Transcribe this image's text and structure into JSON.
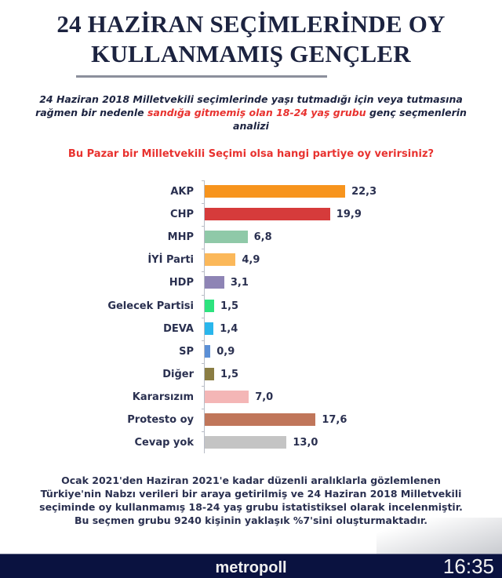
{
  "header": {
    "title_line1": "24 HAZİRAN SEÇİMLERİNDE OY",
    "title_line2": "KULLANMAMIŞ GENÇLER"
  },
  "subtitle": {
    "part1": "24 Haziran 2018 Milletvekili seçimlerinde yaşı tutmadığı için veya tutmasına rağmen bir nedenle ",
    "part_red": "sandığa gitmemiş olan 18-24 yaş grubu",
    "part2": " genç seçmenlerin analizi"
  },
  "question": "Bu Pazar bir Milletvekili Seçimi olsa hangi partiye oy verirsiniz?",
  "chart_data": {
    "type": "bar",
    "orientation": "horizontal",
    "title": "Bu Pazar bir Milletvekili Seçimi olsa hangi partiye oy verirsiniz?",
    "xlabel": "",
    "ylabel": "",
    "unit": "%",
    "grid": false,
    "legend": null,
    "xlim": [
      0,
      25
    ],
    "categories": [
      "AKP",
      "CHP",
      "MHP",
      "İYİ Parti",
      "HDP",
      "Gelecek Partisi",
      "DEVA",
      "SP",
      "Diğer",
      "Kararsızım",
      "Protesto oy",
      "Cevap yok"
    ],
    "values": [
      22.3,
      19.9,
      6.8,
      4.9,
      3.1,
      1.5,
      1.4,
      0.9,
      1.5,
      7.0,
      17.6,
      13.0
    ],
    "value_labels": [
      "22,3",
      "19,9",
      "6,8",
      "4,9",
      "3,1",
      "1,5",
      "1,4",
      "0,9",
      "1,5",
      "7,0",
      "17,6",
      "13,0"
    ],
    "colors": [
      "#f7941d",
      "#d63b3b",
      "#8fc9a8",
      "#fbb85a",
      "#8e84b5",
      "#2de37e",
      "#29b6ec",
      "#5b8fd6",
      "#8a7d43",
      "#f4b6b6",
      "#c0765a",
      "#c4c4c4"
    ]
  },
  "footnote": {
    "line1": "Ocak 2021'den Haziran 2021'e kadar düzenli aralıklarla gözlemlenen",
    "line2": "Türkiye'nin Nabzı verileri bir araya getirilmiş ve 24 Haziran 2018 Milletvekili",
    "line3": "seçiminde oy kullanmamış 18-24 yaş grubu istatistiksel olarak incelenmiştir.",
    "line4": "Bu seçmen grubu 9240 kişinin yaklaşık %7'sini oluşturmaktadır."
  },
  "ticker": {
    "brand": "metropoll",
    "time": "16:35",
    "background": "#0a1240"
  }
}
